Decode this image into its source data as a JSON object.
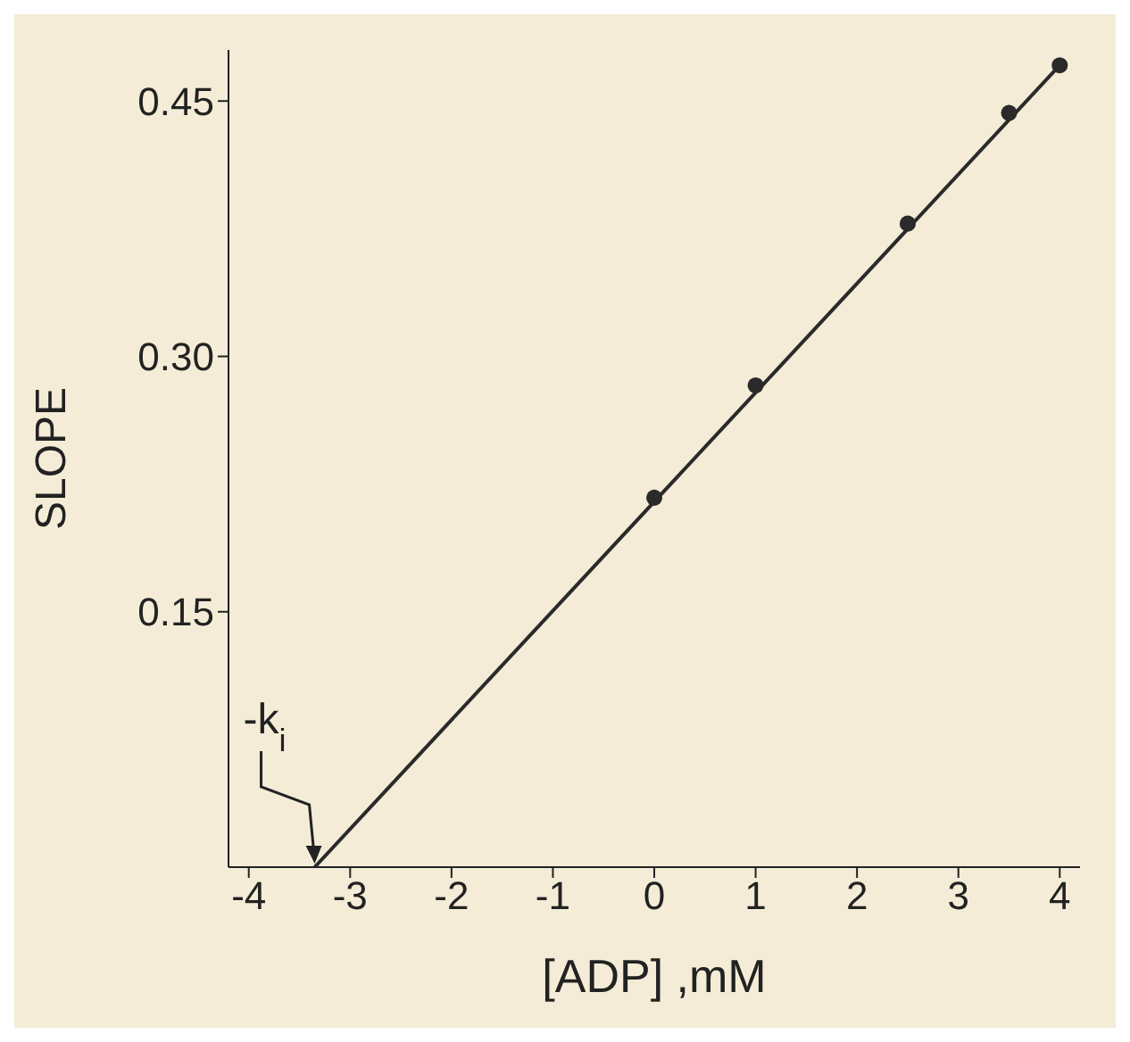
{
  "chart_data": {
    "type": "scatter",
    "xlabel": "[ADP] ,mM",
    "ylabel": "SLOPE",
    "x": [
      0,
      1,
      2.5,
      3.5,
      4
    ],
    "series": [
      {
        "color": "#2a2a2a",
        "values": [
          0.217,
          0.283,
          0.378,
          0.443,
          0.471
        ],
        "marker": "circle"
      },
      {
        "type": "line",
        "color": "#2a2a2a",
        "x": [
          -3.35,
          4
        ],
        "values": [
          0,
          0.471
        ],
        "marker": "none"
      }
    ],
    "xlim": [
      -4.2,
      4.2
    ],
    "xticks": [
      -4,
      -3,
      -2,
      -1,
      0,
      1,
      2,
      3,
      4
    ],
    "ylim": [
      0,
      0.48
    ],
    "yticks": [
      0.15,
      {
        "value": 0.3,
        "label": "0.30"
      },
      0.45
    ],
    "annotations": [
      {
        "text": "-k$_{i}$",
        "x": -3.35,
        "y": 0
      }
    ]
  }
}
